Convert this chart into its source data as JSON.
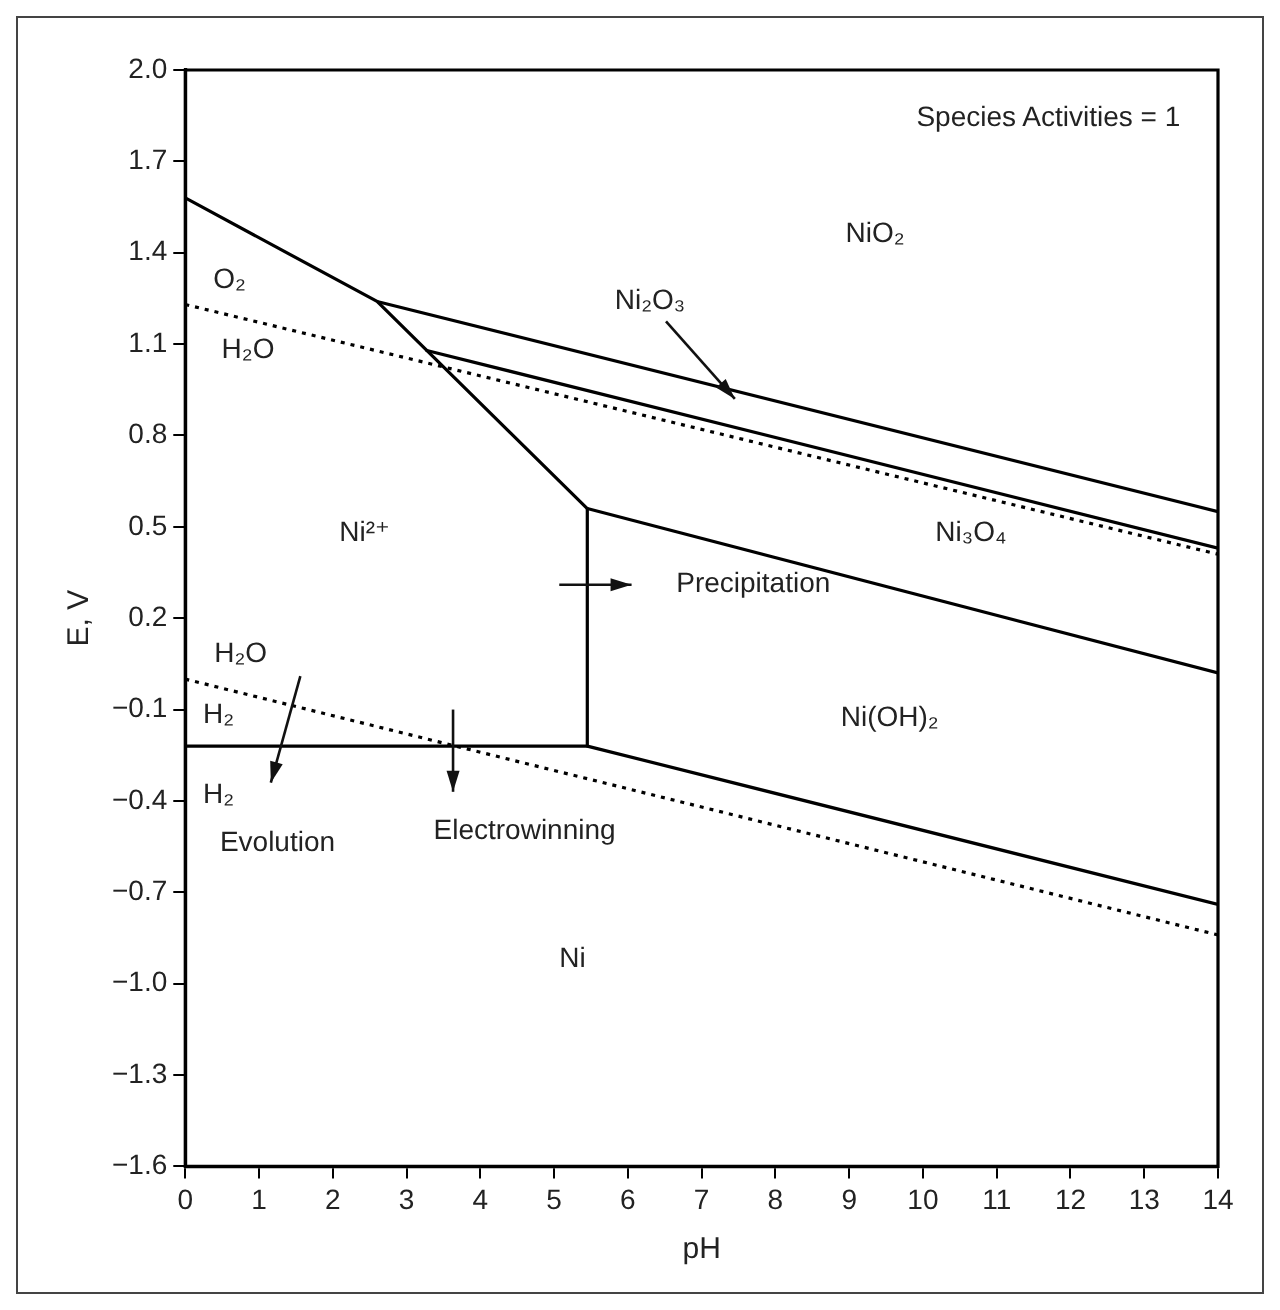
{
  "chart_data": {
    "type": "line",
    "xlabel": "pH",
    "ylabel": "E, V",
    "xlim": [
      0,
      14
    ],
    "xticks": [
      0,
      1,
      2,
      3,
      4,
      5,
      6,
      7,
      8,
      9,
      10,
      11,
      12,
      13,
      14
    ],
    "ylim": [
      -1.6,
      2.0
    ],
    "yticks": [
      {
        "value": -1.6,
        "label": "−1.6"
      },
      {
        "value": -1.3,
        "label": "−1.3"
      },
      {
        "value": -1.0,
        "label": "−1.0"
      },
      {
        "value": -0.7,
        "label": "−0.7"
      },
      {
        "value": -0.4,
        "label": "−0.4"
      },
      {
        "value": -0.1,
        "label": "−0.1"
      },
      {
        "value": 0.2,
        "label": "0.2"
      },
      {
        "value": 0.5,
        "label": "0.5"
      },
      {
        "value": 0.8,
        "label": "0.8"
      },
      {
        "value": 1.1,
        "label": "1.1"
      },
      {
        "value": 1.4,
        "label": "1.4"
      },
      {
        "value": 1.7,
        "label": "1.7"
      },
      {
        "value": 2.0,
        "label": "2.0"
      }
    ],
    "grid": false,
    "legend": false,
    "marker": "none",
    "line_style": "solid",
    "series": [
      {
        "color": "#000000",
        "x": [
          0,
          2.6,
          5.45
        ],
        "values": [
          1.58,
          1.24,
          0.56
        ]
      },
      {
        "color": "#000000",
        "x": [
          2.6,
          14
        ],
        "values": [
          1.24,
          0.55
        ]
      },
      {
        "color": "#000000",
        "x": [
          3.26,
          14
        ],
        "values": [
          1.08,
          0.43
        ]
      },
      {
        "color": "#000000",
        "x": [
          5.45,
          14
        ],
        "values": [
          0.56,
          0.02
        ]
      },
      {
        "color": "#000000",
        "x": [
          5.45,
          5.45
        ],
        "values": [
          0.56,
          -0.22
        ]
      },
      {
        "color": "#000000",
        "x": [
          0,
          5.45,
          14
        ],
        "values": [
          -0.22,
          -0.22,
          -0.74
        ]
      },
      {
        "color": "#000000",
        "line_style": "dotted",
        "x": [
          0,
          14
        ],
        "values": [
          1.23,
          0.41
        ]
      },
      {
        "color": "#000000",
        "line_style": "dotted",
        "x": [
          0,
          14
        ],
        "values": [
          0.0,
          -0.84
        ]
      }
    ],
    "annotations": [
      "Species Activities = 1",
      "NiO₂",
      {
        "text": "Ni₂O₃",
        "x": 7.45,
        "y": 0.92
      },
      "O₂",
      "H₂O",
      "Ni²⁺",
      "Ni₃O₄",
      "Precipitation",
      "H₂O",
      "H₂",
      "Ni(OH)₂",
      "H₂",
      "Evolution",
      "Electrowinning",
      "Ni"
    ]
  }
}
